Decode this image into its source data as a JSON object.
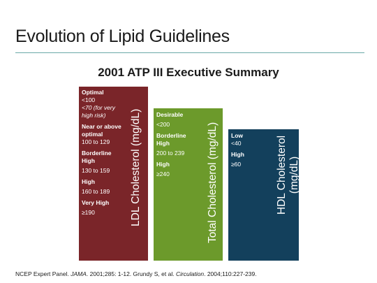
{
  "slide": {
    "title": "Evolution of Lipid Guidelines",
    "subtitle": "2001 ATP III Executive Summary"
  },
  "columns": {
    "ldl": {
      "label": "LDL Cholesterol (mg/dL)",
      "color": "#7a2529",
      "levels": [
        {
          "label": "Optimal",
          "values": [
            "<100",
            "<70 (for very high risk)"
          ]
        },
        {
          "label": "Near or above optimal",
          "values": [
            "100 to 129"
          ]
        },
        {
          "label": "Borderline High",
          "values": [
            "130 to 159"
          ]
        },
        {
          "label": "High",
          "values": [
            "160 to 189"
          ]
        },
        {
          "label": "Very High",
          "values": [
            "≥190"
          ]
        }
      ]
    },
    "tc": {
      "label": "Total Cholesterol (mg/dL)",
      "color": "#6c9a2b",
      "levels": [
        {
          "label": "Desirable",
          "values": [
            "<200"
          ]
        },
        {
          "label": "Borderline High",
          "values": [
            "200 to 239"
          ]
        },
        {
          "label": "High",
          "values": [
            "≥240"
          ]
        }
      ]
    },
    "hdl": {
      "label": "HDL Cholesterol (mg/dL)",
      "color": "#13405c",
      "levels": [
        {
          "label": "Low",
          "values": [
            "<40"
          ]
        },
        {
          "label": "High",
          "values": [
            "≥60"
          ]
        }
      ]
    }
  },
  "footnote": {
    "p1": "NCEP Expert Panel. ",
    "j1": "JAMA",
    "p2": ". 2001;285: 1-12. Grundy S, et al. ",
    "j2": "Circulation",
    "p3": ". 2004;110:227-239."
  }
}
